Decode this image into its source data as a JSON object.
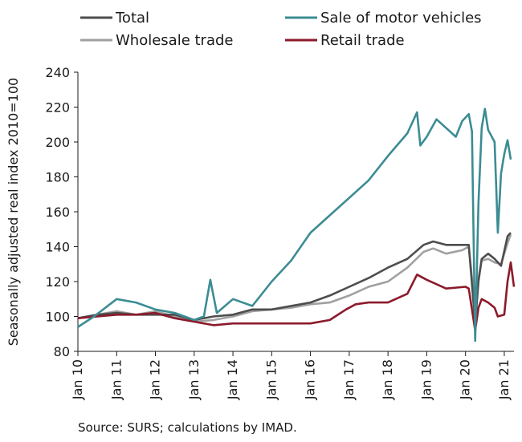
{
  "chart_data": {
    "type": "line",
    "ylabel": "Seasonally adjusted real index 2010=100",
    "ylim": [
      80,
      240
    ],
    "yticks": [
      80,
      100,
      120,
      140,
      160,
      180,
      200,
      220,
      240
    ],
    "x_start": "2010-01",
    "x_end": "2021-04",
    "xtick_labels": [
      "Jan 10",
      "Jan 11",
      "Jan 12",
      "Jan 13",
      "Jan 14",
      "Jan 15",
      "Jan 16",
      "Jan 17",
      "Jan 18",
      "Jan 19",
      "Jan 20",
      "Jan 21"
    ],
    "grid": false,
    "legend": "top",
    "source": "Source: SURS; calculations by IMAD.",
    "series": [
      {
        "name": "Total",
        "color": "#4d4d4d",
        "points": [
          [
            "2010-01",
            99
          ],
          [
            "2010-07",
            101
          ],
          [
            "2011-01",
            102
          ],
          [
            "2011-07",
            101
          ],
          [
            "2012-01",
            101
          ],
          [
            "2012-07",
            101
          ],
          [
            "2013-01",
            98
          ],
          [
            "2013-07",
            100
          ],
          [
            "2014-01",
            101
          ],
          [
            "2014-07",
            104
          ],
          [
            "2015-01",
            104
          ],
          [
            "2015-07",
            106
          ],
          [
            "2016-01",
            108
          ],
          [
            "2016-07",
            112
          ],
          [
            "2017-01",
            117
          ],
          [
            "2017-07",
            122
          ],
          [
            "2018-01",
            128
          ],
          [
            "2018-07",
            133
          ],
          [
            "2018-12",
            141
          ],
          [
            "2019-03",
            143
          ],
          [
            "2019-07",
            141
          ],
          [
            "2019-12",
            141
          ],
          [
            "2020-02",
            141
          ],
          [
            "2020-04",
            96
          ],
          [
            "2020-05",
            120
          ],
          [
            "2020-06",
            133
          ],
          [
            "2020-08",
            136
          ],
          [
            "2020-10",
            133
          ],
          [
            "2020-12",
            129
          ],
          [
            "2021-02",
            146
          ],
          [
            "2021-03",
            148
          ]
        ]
      },
      {
        "name": "Sale of motor vehicles",
        "color": "#3c8c93",
        "points": [
          [
            "2010-01",
            94
          ],
          [
            "2010-06",
            100
          ],
          [
            "2011-01",
            110
          ],
          [
            "2011-07",
            108
          ],
          [
            "2012-01",
            104
          ],
          [
            "2012-07",
            102
          ],
          [
            "2013-01",
            98
          ],
          [
            "2013-04",
            100
          ],
          [
            "2013-06",
            121
          ],
          [
            "2013-08",
            102
          ],
          [
            "2014-01",
            110
          ],
          [
            "2014-07",
            106
          ],
          [
            "2015-01",
            120
          ],
          [
            "2015-07",
            132
          ],
          [
            "2016-01",
            148
          ],
          [
            "2016-07",
            158
          ],
          [
            "2017-01",
            168
          ],
          [
            "2017-07",
            178
          ],
          [
            "2018-01",
            192
          ],
          [
            "2018-07",
            205
          ],
          [
            "2018-10",
            217
          ],
          [
            "2018-11",
            198
          ],
          [
            "2019-01",
            203
          ],
          [
            "2019-04",
            213
          ],
          [
            "2019-07",
            208
          ],
          [
            "2019-10",
            203
          ],
          [
            "2019-12",
            212
          ],
          [
            "2020-02",
            216
          ],
          [
            "2020-03",
            206
          ],
          [
            "2020-04",
            86
          ],
          [
            "2020-05",
            165
          ],
          [
            "2020-06",
            208
          ],
          [
            "2020-07",
            219
          ],
          [
            "2020-08",
            207
          ],
          [
            "2020-10",
            200
          ],
          [
            "2020-11",
            148
          ],
          [
            "2020-12",
            182
          ],
          [
            "2021-01",
            193
          ],
          [
            "2021-02",
            201
          ],
          [
            "2021-03",
            190
          ]
        ]
      },
      {
        "name": "Wholesale trade",
        "color": "#a0a0a0",
        "points": [
          [
            "2010-01",
            99
          ],
          [
            "2010-07",
            101
          ],
          [
            "2011-01",
            103
          ],
          [
            "2011-07",
            101
          ],
          [
            "2012-01",
            103
          ],
          [
            "2012-07",
            100
          ],
          [
            "2013-01",
            97
          ],
          [
            "2013-07",
            98
          ],
          [
            "2014-01",
            100
          ],
          [
            "2014-07",
            103
          ],
          [
            "2015-01",
            104
          ],
          [
            "2015-07",
            105
          ],
          [
            "2016-01",
            107
          ],
          [
            "2016-07",
            108
          ],
          [
            "2017-01",
            112
          ],
          [
            "2017-07",
            117
          ],
          [
            "2018-01",
            120
          ],
          [
            "2018-07",
            128
          ],
          [
            "2018-12",
            137
          ],
          [
            "2019-03",
            139
          ],
          [
            "2019-07",
            136
          ],
          [
            "2019-12",
            138
          ],
          [
            "2020-02",
            140
          ],
          [
            "2020-04",
            105
          ],
          [
            "2020-05",
            122
          ],
          [
            "2020-06",
            132
          ],
          [
            "2020-08",
            133
          ],
          [
            "2020-10",
            131
          ],
          [
            "2020-12",
            130
          ],
          [
            "2021-02",
            142
          ],
          [
            "2021-03",
            147
          ]
        ]
      },
      {
        "name": "Retail trade",
        "color": "#8b1a2b",
        "points": [
          [
            "2010-01",
            99
          ],
          [
            "2010-07",
            100
          ],
          [
            "2011-01",
            101
          ],
          [
            "2011-07",
            101
          ],
          [
            "2012-01",
            102
          ],
          [
            "2012-07",
            99
          ],
          [
            "2013-01",
            97
          ],
          [
            "2013-07",
            95
          ],
          [
            "2014-01",
            96
          ],
          [
            "2014-07",
            96
          ],
          [
            "2015-01",
            96
          ],
          [
            "2015-07",
            96
          ],
          [
            "2016-01",
            96
          ],
          [
            "2016-07",
            98
          ],
          [
            "2016-12",
            104
          ],
          [
            "2017-03",
            107
          ],
          [
            "2017-07",
            108
          ],
          [
            "2018-01",
            108
          ],
          [
            "2018-07",
            113
          ],
          [
            "2018-10",
            124
          ],
          [
            "2019-01",
            121
          ],
          [
            "2019-07",
            116
          ],
          [
            "2020-01",
            117
          ],
          [
            "2020-02",
            116
          ],
          [
            "2020-04",
            92
          ],
          [
            "2020-05",
            105
          ],
          [
            "2020-06",
            110
          ],
          [
            "2020-08",
            108
          ],
          [
            "2020-10",
            105
          ],
          [
            "2020-11",
            100
          ],
          [
            "2021-01",
            101
          ],
          [
            "2021-02",
            120
          ],
          [
            "2021-03",
            131
          ],
          [
            "2021-04",
            117
          ]
        ]
      }
    ]
  }
}
